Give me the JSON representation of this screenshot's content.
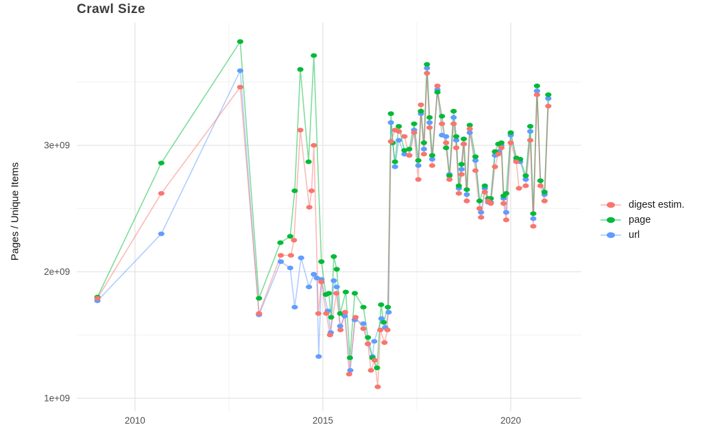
{
  "chart_data": {
    "type": "line",
    "title": "Crawl Size",
    "xlabel": "",
    "ylabel": "Pages / Unique Items",
    "y_unit": "1e+09",
    "xlim": [
      2008.45,
      2021.88
    ],
    "ylim": [
      0.897,
      3.97
    ],
    "x_ticks": {
      "values": [
        2010,
        2015,
        2020
      ],
      "labels": [
        "2010",
        "2015",
        "2020"
      ]
    },
    "x_minor_ticks": [
      2012.5,
      2017.5
    ],
    "y_ticks": {
      "values": [
        1,
        2,
        3
      ],
      "labels": [
        "1e+09",
        "2e+09",
        "3e+09"
      ]
    },
    "y_minor_ticks": [
      1.5,
      2.5,
      3.5
    ],
    "grid": {
      "major_color": "#e4e4e4",
      "minor_color": "#f1f1f1",
      "background": "#ffffff"
    },
    "legend_position": "right",
    "series": [
      {
        "name": "digest estim.",
        "color": "#F8766D",
        "points": [
          [
            2009.0,
            1.79
          ],
          [
            2010.7,
            2.62
          ],
          [
            2012.8,
            3.46
          ],
          [
            2013.3,
            1.67
          ],
          [
            2013.88,
            2.13
          ],
          [
            2014.15,
            2.13
          ],
          [
            2014.23,
            2.25
          ],
          [
            2014.4,
            3.12
          ],
          [
            2014.64,
            2.51
          ],
          [
            2014.7,
            2.64
          ],
          [
            2014.76,
            3.0
          ],
          [
            2014.88,
            1.67
          ],
          [
            2014.96,
            1.92
          ],
          [
            2015.09,
            1.67
          ],
          [
            2015.19,
            1.5
          ],
          [
            2015.36,
            1.83
          ],
          [
            2015.47,
            1.54
          ],
          [
            2015.59,
            1.68
          ],
          [
            2015.7,
            1.19
          ],
          [
            2015.87,
            1.64
          ],
          [
            2016.08,
            1.55
          ],
          [
            2016.2,
            1.43
          ],
          [
            2016.28,
            1.22
          ],
          [
            2016.38,
            1.3
          ],
          [
            2016.46,
            1.09
          ],
          [
            2016.53,
            1.54
          ],
          [
            2016.64,
            1.44
          ],
          [
            2016.72,
            1.54
          ],
          [
            2016.81,
            3.03
          ],
          [
            2016.92,
            3.12
          ],
          [
            2017.02,
            3.11
          ],
          [
            2017.17,
            3.07
          ],
          [
            2017.3,
            2.92
          ],
          [
            2017.43,
            3.1
          ],
          [
            2017.54,
            2.73
          ],
          [
            2017.61,
            3.32
          ],
          [
            2017.69,
            2.93
          ],
          [
            2017.77,
            3.57
          ],
          [
            2017.84,
            3.14
          ],
          [
            2017.91,
            2.84
          ],
          [
            2018.05,
            3.47
          ],
          [
            2018.17,
            3.17
          ],
          [
            2018.28,
            3.02
          ],
          [
            2018.37,
            2.73
          ],
          [
            2018.48,
            3.17
          ],
          [
            2018.55,
            2.98
          ],
          [
            2018.62,
            2.62
          ],
          [
            2018.69,
            2.77
          ],
          [
            2018.75,
            3.01
          ],
          [
            2018.83,
            2.56
          ],
          [
            2018.91,
            3.13
          ],
          [
            2019.06,
            2.8
          ],
          [
            2019.17,
            2.5
          ],
          [
            2019.21,
            2.43
          ],
          [
            2019.31,
            2.63
          ],
          [
            2019.4,
            2.56
          ],
          [
            2019.47,
            2.54
          ],
          [
            2019.58,
            2.83
          ],
          [
            2019.67,
            2.93
          ],
          [
            2019.75,
            2.98
          ],
          [
            2019.81,
            2.54
          ],
          [
            2019.88,
            2.41
          ],
          [
            2020.0,
            3.02
          ],
          [
            2020.15,
            2.87
          ],
          [
            2020.22,
            2.66
          ],
          [
            2020.4,
            2.68
          ],
          [
            2020.52,
            3.04
          ],
          [
            2020.6,
            2.36
          ],
          [
            2020.7,
            3.4
          ],
          [
            2020.79,
            2.68
          ],
          [
            2020.9,
            2.56
          ],
          [
            2021.0,
            3.31
          ]
        ]
      },
      {
        "name": "page",
        "color": "#00BA38",
        "points": [
          [
            2009.0,
            1.8
          ],
          [
            2010.7,
            2.86
          ],
          [
            2012.8,
            3.82
          ],
          [
            2013.3,
            1.79
          ],
          [
            2013.87,
            2.23
          ],
          [
            2014.13,
            2.28
          ],
          [
            2014.25,
            2.64
          ],
          [
            2014.4,
            3.6
          ],
          [
            2014.62,
            2.87
          ],
          [
            2014.76,
            3.71
          ],
          [
            2014.96,
            2.08
          ],
          [
            2015.08,
            1.82
          ],
          [
            2015.16,
            1.83
          ],
          [
            2015.22,
            1.64
          ],
          [
            2015.29,
            2.12
          ],
          [
            2015.37,
            2.02
          ],
          [
            2015.46,
            1.67
          ],
          [
            2015.61,
            1.84
          ],
          [
            2015.72,
            1.32
          ],
          [
            2015.85,
            1.83
          ],
          [
            2016.08,
            1.72
          ],
          [
            2016.2,
            1.48
          ],
          [
            2016.32,
            1.32
          ],
          [
            2016.44,
            1.24
          ],
          [
            2016.55,
            1.74
          ],
          [
            2016.62,
            1.6
          ],
          [
            2016.73,
            1.72
          ],
          [
            2016.81,
            3.25
          ],
          [
            2016.86,
            3.02
          ],
          [
            2016.92,
            2.87
          ],
          [
            2017.02,
            3.15
          ],
          [
            2017.17,
            2.96
          ],
          [
            2017.3,
            2.97
          ],
          [
            2017.43,
            3.17
          ],
          [
            2017.54,
            2.88
          ],
          [
            2017.61,
            3.27
          ],
          [
            2017.69,
            3.02
          ],
          [
            2017.77,
            3.64
          ],
          [
            2017.84,
            3.22
          ],
          [
            2017.91,
            2.92
          ],
          [
            2018.05,
            3.42
          ],
          [
            2018.17,
            3.23
          ],
          [
            2018.28,
            2.98
          ],
          [
            2018.37,
            2.76
          ],
          [
            2018.48,
            3.27
          ],
          [
            2018.55,
            3.07
          ],
          [
            2018.62,
            2.68
          ],
          [
            2018.69,
            2.85
          ],
          [
            2018.75,
            3.05
          ],
          [
            2018.83,
            2.65
          ],
          [
            2018.91,
            3.16
          ],
          [
            2019.06,
            2.91
          ],
          [
            2019.17,
            2.56
          ],
          [
            2019.31,
            2.68
          ],
          [
            2019.4,
            2.58
          ],
          [
            2019.47,
            2.58
          ],
          [
            2019.58,
            2.95
          ],
          [
            2019.67,
            3.01
          ],
          [
            2019.75,
            3.02
          ],
          [
            2019.81,
            2.6
          ],
          [
            2019.88,
            2.62
          ],
          [
            2020.0,
            3.1
          ],
          [
            2020.15,
            2.9
          ],
          [
            2020.25,
            2.89
          ],
          [
            2020.4,
            2.76
          ],
          [
            2020.52,
            3.15
          ],
          [
            2020.6,
            2.46
          ],
          [
            2020.7,
            3.47
          ],
          [
            2020.79,
            2.72
          ],
          [
            2020.9,
            2.63
          ],
          [
            2021.0,
            3.4
          ]
        ]
      },
      {
        "name": "url",
        "color": "#619CFF",
        "points": [
          [
            2009.0,
            1.77
          ],
          [
            2010.7,
            2.3
          ],
          [
            2012.8,
            3.59
          ],
          [
            2013.3,
            1.66
          ],
          [
            2013.88,
            2.08
          ],
          [
            2014.13,
            2.03
          ],
          [
            2014.25,
            1.72
          ],
          [
            2014.42,
            2.11
          ],
          [
            2014.63,
            1.88
          ],
          [
            2014.76,
            1.98
          ],
          [
            2014.84,
            1.95
          ],
          [
            2014.89,
            1.33
          ],
          [
            2014.96,
            1.94
          ],
          [
            2015.13,
            1.69
          ],
          [
            2015.21,
            1.52
          ],
          [
            2015.29,
            1.93
          ],
          [
            2015.37,
            1.88
          ],
          [
            2015.46,
            1.57
          ],
          [
            2015.58,
            1.65
          ],
          [
            2015.73,
            1.22
          ],
          [
            2015.85,
            1.62
          ],
          [
            2016.08,
            1.59
          ],
          [
            2016.2,
            1.43
          ],
          [
            2016.32,
            1.33
          ],
          [
            2016.37,
            1.45
          ],
          [
            2016.56,
            1.63
          ],
          [
            2016.66,
            1.56
          ],
          [
            2016.75,
            1.68
          ],
          [
            2016.81,
            3.18
          ],
          [
            2016.92,
            2.83
          ],
          [
            2017.02,
            3.04
          ],
          [
            2017.17,
            2.93
          ],
          [
            2017.3,
            2.92
          ],
          [
            2017.43,
            3.12
          ],
          [
            2017.54,
            2.84
          ],
          [
            2017.61,
            3.25
          ],
          [
            2017.69,
            2.97
          ],
          [
            2017.77,
            3.61
          ],
          [
            2017.84,
            3.18
          ],
          [
            2017.91,
            2.89
          ],
          [
            2018.05,
            3.44
          ],
          [
            2018.17,
            3.08
          ],
          [
            2018.28,
            3.07
          ],
          [
            2018.37,
            2.77
          ],
          [
            2018.48,
            3.22
          ],
          [
            2018.55,
            3.04
          ],
          [
            2018.62,
            2.66
          ],
          [
            2018.69,
            2.81
          ],
          [
            2018.75,
            3.01
          ],
          [
            2018.83,
            2.61
          ],
          [
            2018.91,
            3.1
          ],
          [
            2019.06,
            2.88
          ],
          [
            2019.17,
            2.56
          ],
          [
            2019.21,
            2.47
          ],
          [
            2019.31,
            2.66
          ],
          [
            2019.4,
            2.55
          ],
          [
            2019.47,
            2.55
          ],
          [
            2019.58,
            2.92
          ],
          [
            2019.67,
            2.95
          ],
          [
            2019.75,
            3.0
          ],
          [
            2019.81,
            2.58
          ],
          [
            2019.88,
            2.47
          ],
          [
            2020.0,
            3.08
          ],
          [
            2020.15,
            2.88
          ],
          [
            2020.25,
            2.87
          ],
          [
            2020.4,
            2.73
          ],
          [
            2020.52,
            3.11
          ],
          [
            2020.6,
            2.42
          ],
          [
            2020.7,
            3.43
          ],
          [
            2020.79,
            2.72
          ],
          [
            2020.9,
            2.61
          ],
          [
            2021.0,
            3.37
          ]
        ]
      }
    ]
  }
}
